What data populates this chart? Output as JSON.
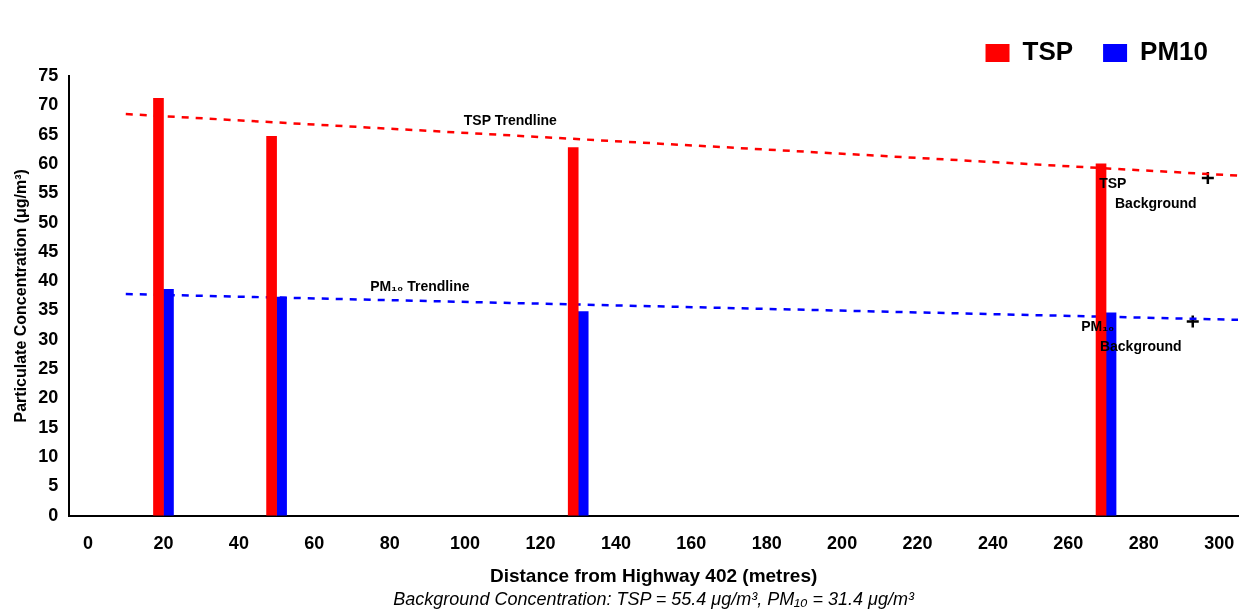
{
  "chart_data": {
    "type": "bar",
    "xlabel": "Distance from Highway 402 (metres)",
    "ylabel": "Particulate Concentration (μg/m³)",
    "x": [
      20,
      50,
      130,
      270
    ],
    "series": [
      {
        "name": "TSP",
        "color": "#ff0000",
        "values": [
          71.2,
          64.7,
          62.8,
          60.0
        ]
      },
      {
        "name": "PM10",
        "color": "#0000ff",
        "values": [
          38.6,
          37.3,
          34.8,
          34.6
        ]
      },
      {
        "type": "line",
        "x": [
          10,
          305
        ],
        "values": [
          68.5,
          58.0
        ],
        "color": "#ff0000",
        "line_style": "dashed",
        "marker": "none"
      },
      {
        "type": "line",
        "x": [
          10,
          305
        ],
        "values": [
          37.8,
          33.4
        ],
        "color": "#0000ff",
        "line_style": "dashed",
        "marker": "none"
      },
      {
        "type": "scatter",
        "x": [
          297,
          293
        ],
        "values": [
          57.6,
          33.1
        ],
        "color": "#000000",
        "marker": "cross"
      }
    ],
    "xlim": [
      -5,
      305
    ],
    "xticks": [
      0,
      20,
      40,
      60,
      80,
      100,
      120,
      140,
      160,
      180,
      200,
      220,
      240,
      260,
      280,
      300
    ],
    "ylim": [
      0,
      75
    ],
    "yticks": [
      0,
      5,
      10,
      15,
      20,
      25,
      30,
      35,
      40,
      45,
      50,
      55,
      60,
      65,
      70,
      75
    ],
    "grid": false,
    "legend": "top right",
    "annotations": [
      {
        "text": "TSP Trendline",
        "x": 112,
        "y": 64.9
      },
      {
        "text": "PM₁₀ Trendline",
        "x": 88,
        "y": 36.6
      },
      {
        "text": "TSP Background",
        "x": 297,
        "y": 57.6
      },
      {
        "text": "PM₁₀ Background",
        "x": 293,
        "y": 33.1
      },
      "Background Concentration: TSP = 55.4 μg/m³, PM₁₀ = 31.4 μg/m³"
    ]
  }
}
